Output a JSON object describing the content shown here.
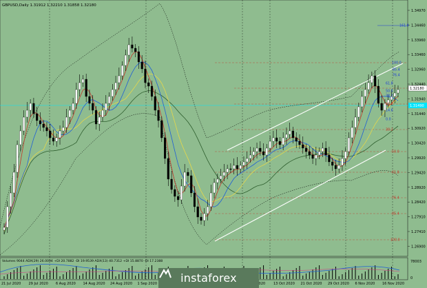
{
  "window": {
    "title": "GBPUSD,Daily  1.31912 1.32210 1.31858 1.32180",
    "volume_label": "Volumes 9044  ADX(29) 26.0094 +DI 20.7882 -DI 19.9539  ADX(13) 40.7312 +DI 15.8870 -DI 17.2388"
  },
  "price_axis": {
    "labels": [
      "1.34970",
      "1.34460",
      "1.33960",
      "1.33460",
      "1.32960",
      "1.32440",
      "1.31940",
      "1.31440",
      "1.30920",
      "1.30420",
      "1.29920",
      "1.29420",
      "1.28920",
      "1.28420",
      "1.27910",
      "1.27410",
      "1.26900"
    ],
    "current_price": "1.32180",
    "highlight_price": "1.31490"
  },
  "volume_axis": {
    "top_label": "78003",
    "bottom_label": "0"
  },
  "date_axis": {
    "labels": [
      "21 Jul 2020",
      "29 Jul 2020",
      "6 Aug 2020",
      "14 Aug 2020",
      "24 Aug 2020",
      "1 Sep 2020",
      "9 Sep 2020",
      "17 Sep 2020",
      "25 Sep 2020",
      "5 Oct 2020",
      "13 Oct 2020",
      "21 Oct 2020",
      "29 Oct 2020",
      "6 Nov 2020",
      "16 Nov 2020"
    ]
  },
  "fib_levels": [
    {
      "label": "161.8",
      "color": "#1f3fd6"
    },
    {
      "label": "100.0",
      "color": "#1f3fd6"
    },
    {
      "label": "85.4",
      "color": "#1f3fd6"
    },
    {
      "label": "76.4",
      "color": "#1f3fd6"
    },
    {
      "label": "61.8",
      "color": "#1f3fd6"
    },
    {
      "label": "50.0",
      "color": "#1f3fd6"
    },
    {
      "label": "38.2",
      "color": "#1f3fd6"
    },
    {
      "label": "23.6",
      "color": "#c0392b"
    },
    {
      "label": "14.6",
      "color": "#1f3fd6"
    },
    {
      "label": "0.0",
      "color": "#1f3fd6"
    },
    {
      "label": "38.2",
      "color": "#c0392b"
    },
    {
      "label": "50.0",
      "color": "#c0392b"
    },
    {
      "label": "61.8",
      "color": "#c0392b"
    },
    {
      "label": "76.4",
      "color": "#c0392b"
    },
    {
      "label": "85.4",
      "color": "#c0392b"
    },
    {
      "label": "100.0",
      "color": "#c0392b"
    }
  ],
  "colors": {
    "background": "#8fbc8f",
    "bull_candle": "#ffffff",
    "bear_candle": "#000000",
    "ma_red": "#c0392b",
    "ma_blue": "#1f5fd6",
    "ma_yellow": "#e6d84a",
    "ma_green": "#2e5e2e",
    "channel": "#ffffff",
    "cyan_line": "#00e5ff"
  },
  "logo": {
    "text": "instaforex"
  }
}
